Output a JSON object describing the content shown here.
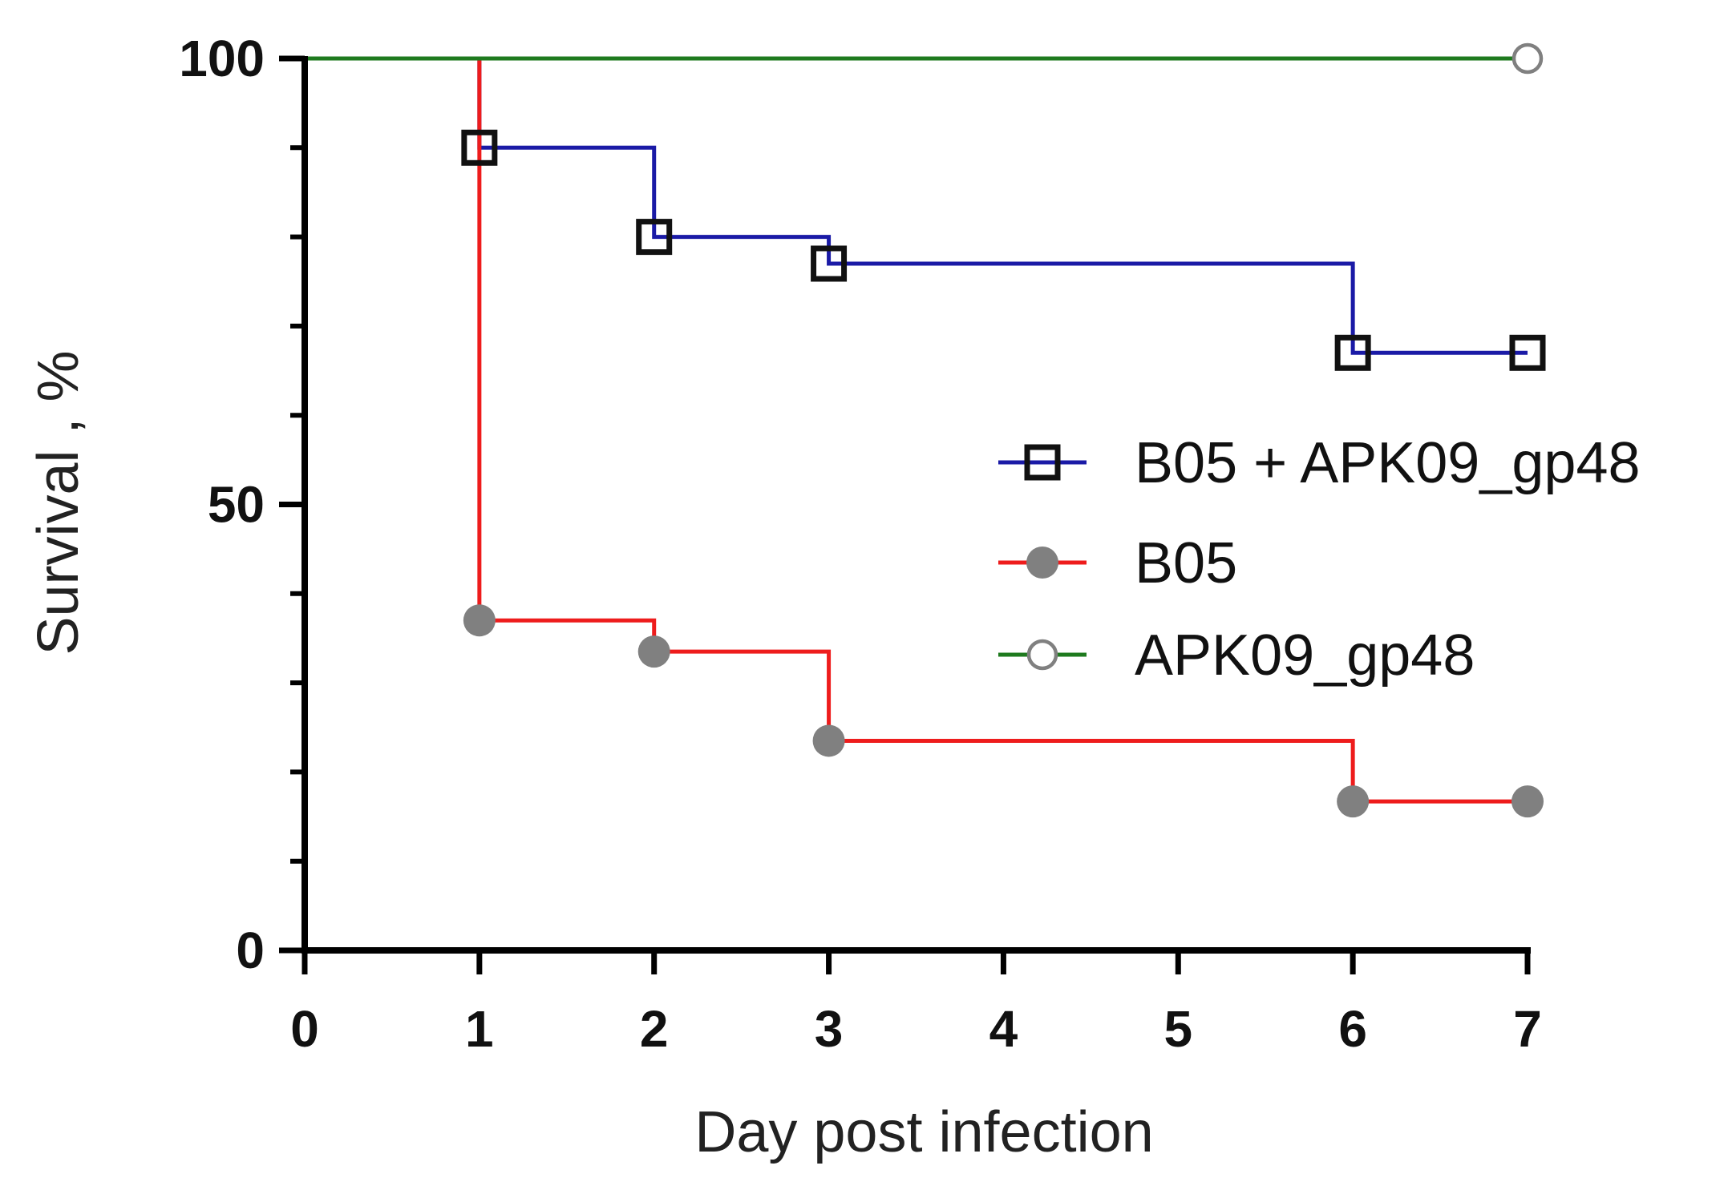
{
  "chart_data": {
    "type": "line",
    "subtype": "kaplan-meier-survival",
    "title": "",
    "xlabel": "Day post infection",
    "ylabel": "Survival , %",
    "xlim": [
      0,
      7
    ],
    "ylim": [
      0,
      100
    ],
    "x_ticks": [
      0,
      1,
      2,
      3,
      4,
      5,
      6,
      7
    ],
    "x_tick_labels": [
      "0",
      "1",
      "2",
      "3",
      "4",
      "5",
      "6",
      "7"
    ],
    "y_ticks": [
      0,
      50,
      100
    ],
    "y_tick_labels": [
      "0",
      "50",
      "100"
    ],
    "y_minor_ticks": [
      10,
      20,
      30,
      40,
      60,
      70,
      80,
      90
    ],
    "legend_position": "center-right",
    "series": [
      {
        "name": "B05 + APK09_gp48",
        "color": "#1a1aa6",
        "marker": "open-square",
        "marker_color": "#111111",
        "steps": [
          [
            0,
            100
          ],
          [
            1,
            90
          ],
          [
            2,
            80
          ],
          [
            3,
            77
          ],
          [
            6,
            67
          ],
          [
            7,
            67
          ]
        ],
        "markers": [
          [
            1,
            90
          ],
          [
            2,
            80
          ],
          [
            3,
            77
          ],
          [
            6,
            67
          ],
          [
            7,
            67
          ]
        ]
      },
      {
        "name": "B05",
        "color": "#ee1c1c",
        "marker": "filled-circle",
        "marker_color": "#808080",
        "steps": [
          [
            0,
            100
          ],
          [
            1,
            37
          ],
          [
            2,
            33.5
          ],
          [
            3,
            23.5
          ],
          [
            6,
            16.7
          ],
          [
            7,
            16.7
          ]
        ],
        "markers": [
          [
            1,
            37
          ],
          [
            2,
            33.5
          ],
          [
            3,
            23.5
          ],
          [
            6,
            16.7
          ],
          [
            7,
            16.7
          ]
        ]
      },
      {
        "name": "APK09_gp48",
        "color": "#1e7a1e",
        "marker": "open-circle",
        "marker_color": "#808080",
        "steps": [
          [
            0,
            100
          ],
          [
            7,
            100
          ]
        ],
        "markers": [
          [
            7,
            100
          ]
        ]
      }
    ]
  }
}
